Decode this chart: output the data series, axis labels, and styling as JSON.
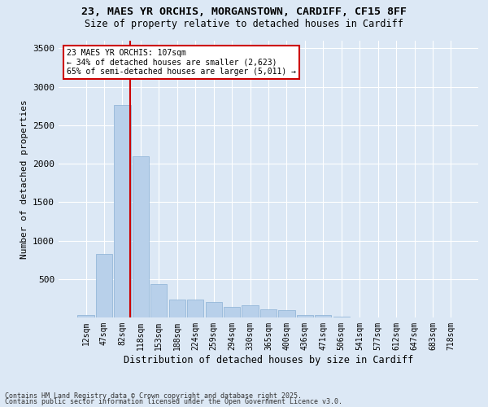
{
  "title1": "23, MAES YR ORCHIS, MORGANSTOWN, CARDIFF, CF15 8FF",
  "title2": "Size of property relative to detached houses in Cardiff",
  "xlabel": "Distribution of detached houses by size in Cardiff",
  "ylabel": "Number of detached properties",
  "bar_color": "#b8d0ea",
  "bar_edge_color": "#8ab0d4",
  "background_color": "#dce8f5",
  "grid_color": "#ffffff",
  "categories": [
    "12sqm",
    "47sqm",
    "82sqm",
    "118sqm",
    "153sqm",
    "188sqm",
    "224sqm",
    "259sqm",
    "294sqm",
    "330sqm",
    "365sqm",
    "400sqm",
    "436sqm",
    "471sqm",
    "506sqm",
    "541sqm",
    "577sqm",
    "612sqm",
    "647sqm",
    "683sqm",
    "718sqm"
  ],
  "values": [
    30,
    830,
    2760,
    2100,
    430,
    230,
    230,
    200,
    140,
    155,
    110,
    100,
    35,
    35,
    8,
    0,
    0,
    0,
    0,
    0,
    0
  ],
  "property_bin_index": 2,
  "vline_x_offset": 0.43,
  "annotation_text": "23 MAES YR ORCHIS: 107sqm\n← 34% of detached houses are smaller (2,623)\n65% of semi-detached houses are larger (5,011) →",
  "vline_color": "#cc0000",
  "annotation_box_color": "#ffffff",
  "annotation_box_edge": "#cc0000",
  "footer1": "Contains HM Land Registry data © Crown copyright and database right 2025.",
  "footer2": "Contains public sector information licensed under the Open Government Licence v3.0.",
  "ylim": [
    0,
    3600
  ],
  "yticks": [
    0,
    500,
    1000,
    1500,
    2000,
    2500,
    3000,
    3500
  ]
}
